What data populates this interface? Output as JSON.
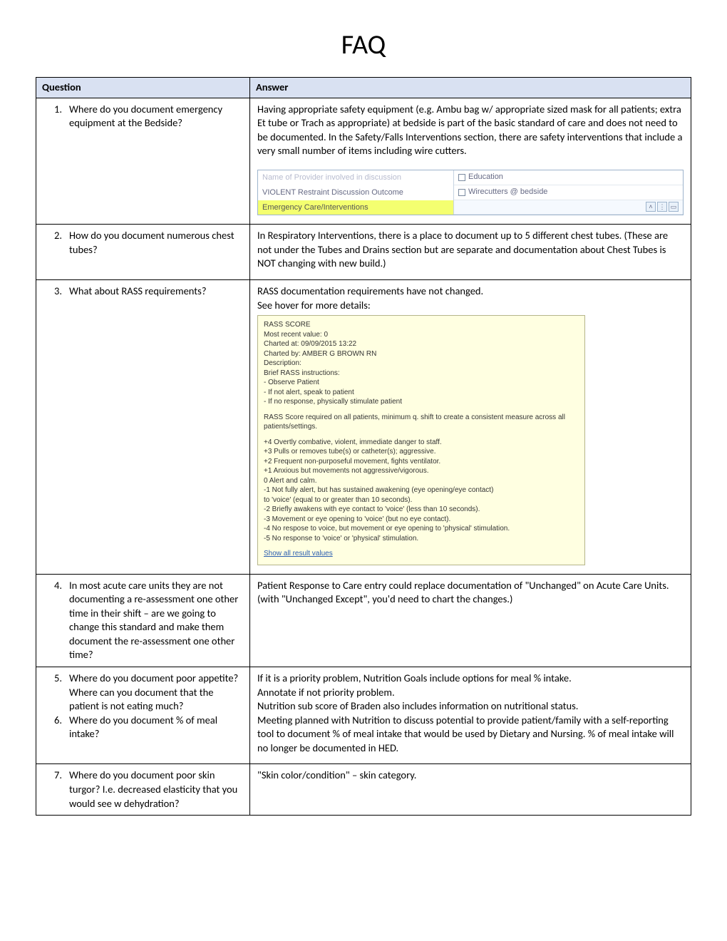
{
  "title": "FAQ",
  "headers": {
    "q": "Question",
    "a": "Answer"
  },
  "rows": [
    {
      "num": "1.",
      "q": "Where do you document emergency equipment at the Bedside?",
      "a": "Having appropriate safety equipment (e.g. Ambu bag w/ appropriate sized mask for all patients; extra Et tube or Trach as appropriate) at bedside is part of the basic standard of care and does not need to be documented. In the Safety/Falls Interventions section, there are safety interventions that include a very small number of items including wire cutters.",
      "embed": "restraint"
    },
    {
      "num": "2.",
      "q": "How do you document numerous chest tubes?",
      "a": "In Respiratory Interventions, there is a place to document up to 5 different chest tubes. (These are not under the Tubes and Drains section but are separate and documentation about Chest Tubes is NOT changing with new build.)"
    },
    {
      "num": "3.",
      "q": "What about RASS requirements?",
      "a_lines": [
        "RASS documentation requirements have not changed.",
        "See hover for more details:"
      ],
      "embed": "rass"
    },
    {
      "num": "4.",
      "q": "In most acute care units they are not documenting a re-assessment one other time in their shift – are we going to change this standard and make them document the re-assessment one other time?",
      "a": "Patient Response to Care entry could replace documentation of \"Unchanged\" on Acute Care Units. (with \"Unchanged Except\", you'd need to chart the changes.)"
    },
    {
      "combo": true,
      "items": [
        {
          "num": "5.",
          "q": "Where do you document poor appetite?  Where can you document that the patient is not eating much?"
        },
        {
          "num": "6.",
          "q": "Where do you document % of meal intake?"
        }
      ],
      "a_lines": [
        "If it is a priority problem, Nutrition Goals include options for meal % intake.",
        "Annotate if not priority problem.",
        "Nutrition sub score of Braden also includes information on nutritional status.",
        "Meeting planned with Nutrition to discuss potential to provide patient/family with a self-reporting tool to document % of meal intake that would be used by Dietary and Nursing. % of meal intake will no longer be documented in HED."
      ]
    },
    {
      "num": "7.",
      "q": "Where do you document poor skin turgor?  I.e. decreased elasticity that you would see w dehydration?",
      "a": "\"Skin color/condition\" – skin category."
    }
  ],
  "embed_restraint": {
    "row1_left": "Name of Provider involved in discussion",
    "row2_left": "VIOLENT Restraint Discussion Outcome",
    "row3_left": "Emergency Care/Interventions",
    "chk1": "Education",
    "chk2": "Wirecutters @ bedside"
  },
  "embed_rass": {
    "l1": "RASS SCORE",
    "l2": "Most recent value: 0",
    "l3": "Charted at: 09/09/2015 13:22",
    "l4": "Charted by: AMBER G BROWN RN",
    "l5": "Description:",
    "l6": "Brief RASS instructions:",
    "l7": "- Observe Patient",
    "l8": "- If not alert, speak to patient",
    "l9": "- If no response, physically stimulate patient",
    "p2": "RASS Score required on all patients, minimum q. shift to create a consistent measure across all patients/settings.",
    "s4": "+4 Overtly combative, violent, immediate danger to staff.",
    "s3": "+3 Pulls or removes tube(s) or catheter(s); aggressive.",
    "s2": "+2 Frequent non-purposeful movement, fights ventilator.",
    "s1": "+1 Anxious but movements not aggressive/vigorous.",
    "s0": "0 Alert and calm.",
    "sn1a": "-1 Not fully alert, but has sustained awakening (eye opening/eye contact)",
    "sn1b": "   to 'voice' (equal to or greater than 10 seconds).",
    "sn2": "-2 Briefly awakens with eye contact to 'voice' (less than 10 seconds).",
    "sn3": "-3 Movement or eye opening to 'voice' (but no eye contact).",
    "sn4": "-4 No respose to voice, but movement or eye opening to 'physical' stimulation.",
    "sn5": "-5 No response to 'voice' or 'physical' stimulation.",
    "link": "Show all result values"
  }
}
